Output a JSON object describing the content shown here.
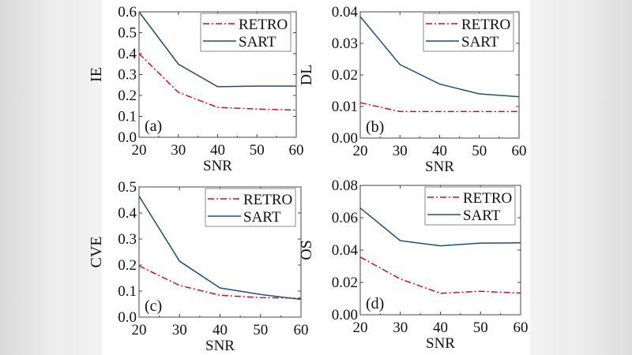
{
  "chart_data": [
    {
      "type": "line",
      "panel_label": "(a)",
      "xlabel": "SNR",
      "ylabel": "IE",
      "x": [
        20,
        30,
        40,
        50,
        60
      ],
      "xlim": [
        20,
        60
      ],
      "xticks": [
        "20",
        "30",
        "40",
        "50",
        "60"
      ],
      "ylim": [
        0,
        0.6
      ],
      "yticks": [
        "0.0",
        "0.1",
        "0.2",
        "0.3",
        "0.4",
        "0.5",
        "0.6"
      ],
      "legend": "top-right",
      "grid": false,
      "series": [
        {
          "name": "RETRO",
          "style": "dash-dot",
          "color": "#c8102e",
          "values": [
            0.4,
            0.215,
            0.143,
            0.135,
            0.13
          ]
        },
        {
          "name": "SART",
          "style": "solid",
          "color": "#1f4e79",
          "values": [
            0.6,
            0.35,
            0.242,
            0.245,
            0.245
          ]
        }
      ]
    },
    {
      "type": "line",
      "panel_label": "(b)",
      "xlabel": "SNR",
      "ylabel": "DL",
      "x": [
        20,
        30,
        40,
        50,
        60
      ],
      "xlim": [
        20,
        60
      ],
      "xticks": [
        "20",
        "30",
        "40",
        "50",
        "60"
      ],
      "ylim": [
        0,
        0.04
      ],
      "yticks": [
        "0.00",
        "0.01",
        "0.02",
        "0.03",
        "0.04"
      ],
      "legend": "top-right",
      "grid": false,
      "series": [
        {
          "name": "RETRO",
          "style": "dash-dot",
          "color": "#c8102e",
          "values": [
            0.0112,
            0.0084,
            0.0084,
            0.0084,
            0.0084
          ]
        },
        {
          "name": "SART",
          "style": "solid",
          "color": "#1f4e79",
          "values": [
            0.0385,
            0.0233,
            0.0171,
            0.014,
            0.0131
          ]
        }
      ]
    },
    {
      "type": "line",
      "panel_label": "(c)",
      "xlabel": "SNR",
      "ylabel": "CVE",
      "x": [
        20,
        30,
        40,
        50,
        60
      ],
      "xlim": [
        20,
        60
      ],
      "xticks": [
        "20",
        "30",
        "40",
        "50",
        "60"
      ],
      "ylim": [
        0,
        0.5
      ],
      "yticks": [
        "0.0",
        "0.1",
        "0.2",
        "0.3",
        "0.4",
        "0.5"
      ],
      "legend": "top-right",
      "grid": false,
      "series": [
        {
          "name": "RETRO",
          "style": "dash-dot",
          "color": "#c8102e",
          "values": [
            0.197,
            0.122,
            0.084,
            0.075,
            0.073
          ]
        },
        {
          "name": "SART",
          "style": "solid",
          "color": "#1f4e79",
          "values": [
            0.465,
            0.215,
            0.112,
            0.087,
            0.068
          ]
        }
      ]
    },
    {
      "type": "line",
      "panel_label": "(d)",
      "xlabel": "SNR",
      "ylabel": "OS",
      "x": [
        20,
        30,
        40,
        50,
        60
      ],
      "xlim": [
        20,
        60
      ],
      "xticks": [
        "20",
        "30",
        "40",
        "50",
        "60"
      ],
      "ylim": [
        0,
        0.08
      ],
      "yticks": [
        "0.00",
        "0.02",
        "0.04",
        "0.06",
        "0.08"
      ],
      "legend": "top-right",
      "grid": false,
      "series": [
        {
          "name": "RETRO",
          "style": "dash-dot",
          "color": "#c8102e",
          "values": [
            0.0357,
            0.0221,
            0.0133,
            0.0145,
            0.0134
          ]
        },
        {
          "name": "SART",
          "style": "solid",
          "color": "#1f4e79",
          "values": [
            0.066,
            0.0458,
            0.0426,
            0.0443,
            0.0445
          ]
        }
      ]
    }
  ]
}
